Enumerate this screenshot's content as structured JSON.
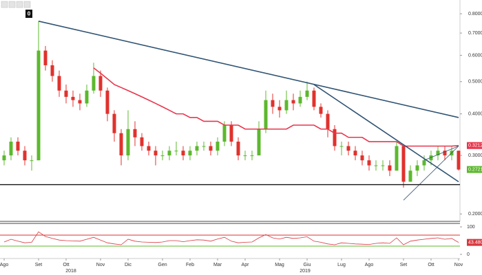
{
  "badge": "0",
  "chart_data": {
    "type": "candlestick",
    "categories": [
      "Ago",
      null,
      null,
      null,
      null,
      "Set",
      null,
      null,
      null,
      "Ott",
      null,
      null,
      null,
      null,
      "Nov",
      null,
      null,
      null,
      "Dic",
      null,
      null,
      null,
      null,
      "Gen",
      null,
      null,
      null,
      "Feb",
      null,
      null,
      null,
      "Mar",
      null,
      null,
      null,
      "Apr",
      null,
      null,
      null,
      null,
      "Mag",
      null,
      null,
      null,
      "Giu",
      null,
      null,
      null,
      null,
      "Lug",
      null,
      null,
      null,
      "Ago",
      null,
      null,
      null,
      null,
      "Set",
      null,
      null,
      null,
      "Ott",
      null,
      null,
      null,
      "Nov"
    ],
    "years": [
      "2018",
      "2019"
    ],
    "open": [
      0.29,
      0.3,
      0.33,
      0.31,
      0.29,
      0.29,
      0.62,
      0.56,
      0.52,
      0.47,
      0.45,
      0.44,
      0.43,
      0.47,
      0.52,
      0.47,
      0.4,
      0.35,
      0.3,
      0.36,
      0.34,
      0.32,
      0.31,
      0.3,
      0.3,
      0.31,
      0.31,
      0.3,
      0.31,
      0.32,
      0.32,
      0.31,
      0.33,
      0.37,
      0.33,
      0.3,
      0.3,
      0.3,
      0.36,
      0.44,
      0.42,
      0.41,
      0.44,
      0.43,
      0.45,
      0.47,
      0.42,
      0.4,
      0.36,
      0.32,
      0.32,
      0.31,
      0.3,
      0.29,
      0.28,
      0.28,
      0.28,
      0.27,
      0.32,
      0.25,
      0.27,
      0.28,
      0.29,
      0.3,
      0.31,
      0.3,
      0.31
    ],
    "high": [
      0.31,
      0.34,
      0.34,
      0.32,
      0.3,
      0.76,
      0.64,
      0.58,
      0.54,
      0.49,
      0.47,
      0.46,
      0.49,
      0.57,
      0.54,
      0.48,
      0.41,
      0.36,
      0.41,
      0.38,
      0.35,
      0.33,
      0.32,
      0.31,
      0.32,
      0.33,
      0.32,
      0.32,
      0.33,
      0.33,
      0.33,
      0.34,
      0.38,
      0.38,
      0.34,
      0.31,
      0.31,
      0.38,
      0.47,
      0.46,
      0.44,
      0.47,
      0.46,
      0.47,
      0.5,
      0.48,
      0.43,
      0.41,
      0.37,
      0.33,
      0.33,
      0.32,
      0.31,
      0.3,
      0.29,
      0.29,
      0.29,
      0.33,
      0.32,
      0.28,
      0.29,
      0.3,
      0.31,
      0.32,
      0.32,
      0.32,
      0.31
    ],
    "low": [
      0.28,
      0.29,
      0.3,
      0.28,
      0.27,
      0.29,
      0.54,
      0.5,
      0.45,
      0.43,
      0.42,
      0.41,
      0.42,
      0.46,
      0.45,
      0.38,
      0.33,
      0.28,
      0.29,
      0.32,
      0.31,
      0.3,
      0.28,
      0.29,
      0.29,
      0.3,
      0.29,
      0.29,
      0.3,
      0.31,
      0.3,
      0.3,
      0.32,
      0.32,
      0.29,
      0.29,
      0.29,
      0.3,
      0.35,
      0.4,
      0.39,
      0.4,
      0.41,
      0.42,
      0.44,
      0.41,
      0.39,
      0.34,
      0.31,
      0.3,
      0.3,
      0.29,
      0.28,
      0.27,
      0.27,
      0.27,
      0.26,
      0.27,
      0.24,
      0.25,
      0.26,
      0.27,
      0.28,
      0.29,
      0.29,
      0.29,
      0.27
    ],
    "close": [
      0.3,
      0.33,
      0.31,
      0.29,
      0.29,
      0.62,
      0.56,
      0.52,
      0.47,
      0.45,
      0.44,
      0.43,
      0.47,
      0.52,
      0.47,
      0.4,
      0.35,
      0.3,
      0.36,
      0.34,
      0.32,
      0.31,
      0.3,
      0.3,
      0.31,
      0.31,
      0.3,
      0.31,
      0.32,
      0.32,
      0.31,
      0.33,
      0.37,
      0.33,
      0.3,
      0.3,
      0.3,
      0.36,
      0.44,
      0.42,
      0.41,
      0.44,
      0.43,
      0.45,
      0.47,
      0.42,
      0.4,
      0.36,
      0.32,
      0.32,
      0.31,
      0.3,
      0.29,
      0.28,
      0.28,
      0.28,
      0.27,
      0.32,
      0.25,
      0.27,
      0.28,
      0.29,
      0.3,
      0.31,
      0.3,
      0.31,
      0.2721
    ],
    "up_color": "#5cb82e",
    "down_color": "#e0322d",
    "moving_average": {
      "color": "#e8344b",
      "values": [
        null,
        null,
        null,
        null,
        null,
        null,
        null,
        null,
        null,
        null,
        null,
        null,
        null,
        0.55,
        0.53,
        0.51,
        0.49,
        0.48,
        0.47,
        0.46,
        0.45,
        0.44,
        0.43,
        0.42,
        0.41,
        0.4,
        0.4,
        0.39,
        0.39,
        0.38,
        0.38,
        0.38,
        0.37,
        0.37,
        0.37,
        0.36,
        0.36,
        0.36,
        0.36,
        0.36,
        0.36,
        0.36,
        0.37,
        0.37,
        0.37,
        0.37,
        0.36,
        0.36,
        0.35,
        0.35,
        0.34,
        0.34,
        0.34,
        0.33,
        0.33,
        0.33,
        0.33,
        0.33,
        0.32,
        0.32,
        0.32,
        0.32,
        0.32,
        0.32,
        0.32,
        0.32,
        0.3212
      ]
    },
    "trendlines": [
      {
        "x": [
          5,
          66
        ],
        "y": [
          0.76,
          0.39
        ]
      },
      {
        "x": [
          45,
          66
        ],
        "y": [
          0.49,
          0.25
        ]
      },
      {
        "x": [
          58,
          66
        ],
        "y": [
          0.22,
          0.32
        ]
      },
      {
        "x": [
          61,
          66
        ],
        "y": [
          0.29,
          0.32
        ]
      }
    ],
    "trend_color": "#2f5373",
    "support": 0.245,
    "support_color": "#111111",
    "log_y": true,
    "ylim": [
      0.19,
      0.88
    ],
    "yticks": [
      {
        "value": 0.2,
        "label": "0.2000"
      },
      {
        "value": 0.3,
        "label": "0.3000"
      },
      {
        "value": 0.4,
        "label": "0.4000"
      },
      {
        "value": 0.5,
        "label": "0.5000"
      },
      {
        "value": 0.6,
        "label": "0.6000"
      },
      {
        "value": 0.7,
        "label": "0.7000"
      },
      {
        "value": 0.8,
        "label": "0.8000"
      }
    ],
    "rsi": {
      "color": "#d9363e",
      "ylim": [
        0,
        100
      ],
      "yticks": [
        100,
        0
      ],
      "levels": [
        70,
        30
      ],
      "level_colors": [
        "#e0322d",
        "#5cb82e"
      ],
      "values": [
        45,
        55,
        48,
        42,
        44,
        82,
        65,
        58,
        52,
        50,
        49,
        48,
        55,
        62,
        52,
        42,
        38,
        35,
        55,
        48,
        45,
        44,
        43,
        45,
        50,
        50,
        46,
        50,
        53,
        52,
        48,
        56,
        62,
        48,
        42,
        44,
        45,
        60,
        72,
        60,
        56,
        62,
        58,
        60,
        64,
        48,
        44,
        38,
        35,
        42,
        40,
        38,
        37,
        36,
        40,
        42,
        40,
        60,
        35,
        48,
        52,
        55,
        58,
        60,
        55,
        58,
        43.4805
      ]
    }
  }
}
